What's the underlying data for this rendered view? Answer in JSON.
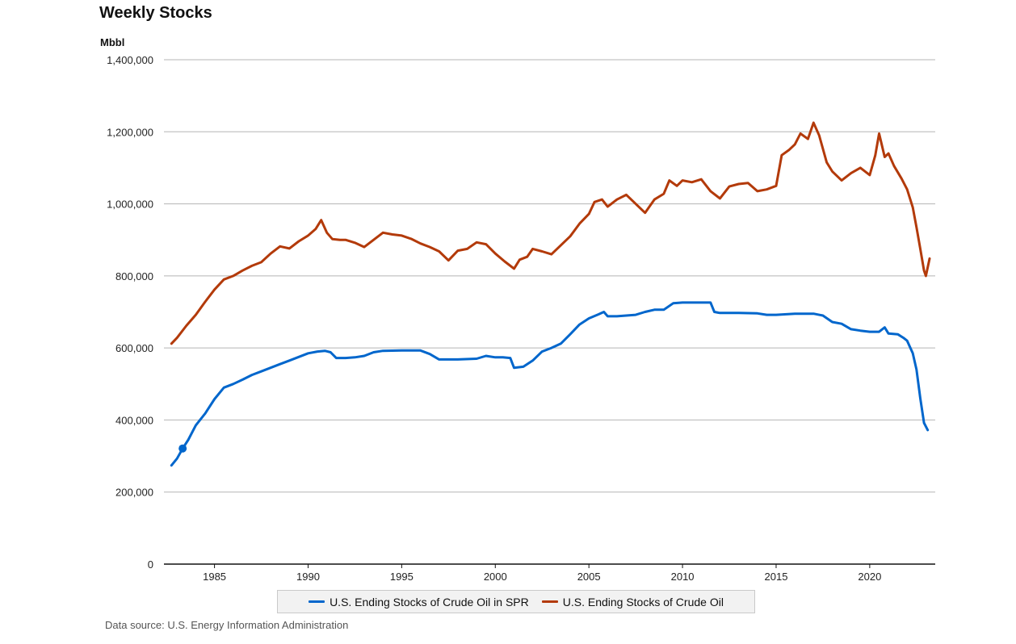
{
  "title": "Weekly Stocks",
  "unit": "Mbbl",
  "source": "Data source: U.S. Energy Information Administration",
  "chart_data": {
    "type": "line",
    "title": "Weekly Stocks",
    "ylabel": "Mbbl",
    "xlabel": "",
    "xlim": [
      1982.3,
      2023.5
    ],
    "ylim": [
      0,
      1400000
    ],
    "y_ticks": [
      0,
      200000,
      400000,
      600000,
      800000,
      1000000,
      1200000,
      1400000
    ],
    "y_tick_labels": [
      "0",
      "200,000",
      "400,000",
      "600,000",
      "800,000",
      "1,000,000",
      "1,200,000",
      "1,400,000"
    ],
    "x_ticks": [
      1985,
      1990,
      1995,
      2000,
      2005,
      2010,
      2015,
      2020
    ],
    "x_tick_labels": [
      "1985",
      "1990",
      "1995",
      "2000",
      "2005",
      "2010",
      "2015",
      "2020"
    ],
    "grid": true,
    "legend_position": "bottom",
    "series": [
      {
        "name": "U.S. Ending Stocks of Crude Oil in SPR",
        "color": "#0066cc",
        "marker": {
          "x": 1983.3,
          "y": 321000
        },
        "x": [
          1982.7,
          1983.0,
          1983.3,
          1983.6,
          1984.0,
          1984.5,
          1985.0,
          1985.5,
          1986.0,
          1986.5,
          1987.0,
          1987.5,
          1988.0,
          1988.5,
          1989.0,
          1989.5,
          1990.0,
          1990.5,
          1990.9,
          1991.2,
          1991.5,
          1992.0,
          1992.5,
          1993.0,
          1993.5,
          1994.0,
          1995.0,
          1996.0,
          1996.5,
          1997.0,
          1998.0,
          1999.0,
          1999.5,
          2000.0,
          2000.4,
          2000.8,
          2001.0,
          2001.5,
          2002.0,
          2002.5,
          2003.0,
          2003.5,
          2004.0,
          2004.5,
          2005.0,
          2005.5,
          2005.8,
          2006.0,
          2006.5,
          2007.0,
          2007.5,
          2008.0,
          2008.5,
          2009.0,
          2009.5,
          2010.0,
          2011.0,
          2011.5,
          2011.7,
          2012.0,
          2013.0,
          2014.0,
          2014.5,
          2015.0,
          2016.0,
          2017.0,
          2017.5,
          2018.0,
          2018.5,
          2019.0,
          2019.5,
          2020.0,
          2020.5,
          2020.8,
          2021.0,
          2021.5,
          2021.8,
          2022.0,
          2022.3,
          2022.5,
          2022.7,
          2022.9,
          2023.1
        ],
        "y": [
          274000,
          293000,
          321000,
          345000,
          385000,
          418000,
          458000,
          490000,
          500000,
          512000,
          525000,
          535000,
          545000,
          555000,
          565000,
          575000,
          585000,
          590000,
          592000,
          588000,
          572000,
          572000,
          574000,
          578000,
          588000,
          592000,
          593000,
          593000,
          583000,
          568000,
          568000,
          570000,
          578000,
          574000,
          574000,
          572000,
          545000,
          548000,
          565000,
          590000,
          600000,
          612000,
          638000,
          665000,
          682000,
          693000,
          700000,
          688000,
          688000,
          690000,
          692000,
          700000,
          706000,
          706000,
          724000,
          726000,
          726000,
          726000,
          700000,
          697000,
          697000,
          696000,
          692000,
          692000,
          695000,
          695000,
          690000,
          672000,
          667000,
          652000,
          648000,
          645000,
          645000,
          657000,
          640000,
          638000,
          628000,
          620000,
          585000,
          540000,
          460000,
          392000,
          372000
        ]
      },
      {
        "name": "U.S. Ending Stocks of Crude Oil",
        "color": "#b33a0a",
        "x": [
          1982.7,
          1983.0,
          1983.5,
          1984.0,
          1984.5,
          1985.0,
          1985.5,
          1986.0,
          1986.5,
          1987.0,
          1987.5,
          1988.0,
          1988.5,
          1989.0,
          1989.5,
          1990.0,
          1990.4,
          1990.7,
          1991.0,
          1991.3,
          1991.7,
          1992.0,
          1992.5,
          1993.0,
          1993.5,
          1994.0,
          1994.5,
          1995.0,
          1995.5,
          1996.0,
          1996.5,
          1997.0,
          1997.5,
          1998.0,
          1998.5,
          1999.0,
          1999.5,
          2000.0,
          2000.5,
          2001.0,
          2001.3,
          2001.7,
          2002.0,
          2002.5,
          2003.0,
          2003.5,
          2004.0,
          2004.5,
          2005.0,
          2005.3,
          2005.7,
          2006.0,
          2006.5,
          2007.0,
          2007.5,
          2008.0,
          2008.5,
          2009.0,
          2009.3,
          2009.7,
          2010.0,
          2010.5,
          2011.0,
          2011.5,
          2012.0,
          2012.5,
          2013.0,
          2013.5,
          2014.0,
          2014.5,
          2015.0,
          2015.3,
          2015.7,
          2016.0,
          2016.3,
          2016.7,
          2017.0,
          2017.3,
          2017.7,
          2018.0,
          2018.5,
          2019.0,
          2019.5,
          2020.0,
          2020.3,
          2020.5,
          2020.8,
          2021.0,
          2021.3,
          2021.7,
          2022.0,
          2022.3,
          2022.5,
          2022.7,
          2022.9,
          2023.0,
          2023.2
        ],
        "y": [
          612000,
          628000,
          662000,
          692000,
          728000,
          762000,
          790000,
          800000,
          815000,
          828000,
          838000,
          862000,
          882000,
          876000,
          896000,
          912000,
          930000,
          955000,
          920000,
          902000,
          900000,
          900000,
          892000,
          880000,
          900000,
          920000,
          915000,
          912000,
          903000,
          890000,
          880000,
          868000,
          843000,
          870000,
          875000,
          893000,
          888000,
          862000,
          840000,
          820000,
          845000,
          853000,
          875000,
          868000,
          860000,
          885000,
          910000,
          945000,
          972000,
          1005000,
          1012000,
          992000,
          1012000,
          1025000,
          1000000,
          975000,
          1012000,
          1028000,
          1065000,
          1050000,
          1065000,
          1060000,
          1068000,
          1035000,
          1015000,
          1048000,
          1055000,
          1058000,
          1035000,
          1040000,
          1050000,
          1135000,
          1150000,
          1165000,
          1195000,
          1180000,
          1225000,
          1190000,
          1115000,
          1090000,
          1065000,
          1085000,
          1100000,
          1080000,
          1135000,
          1195000,
          1130000,
          1140000,
          1105000,
          1070000,
          1040000,
          990000,
          935000,
          875000,
          815000,
          800000,
          848000
        ]
      }
    ]
  }
}
